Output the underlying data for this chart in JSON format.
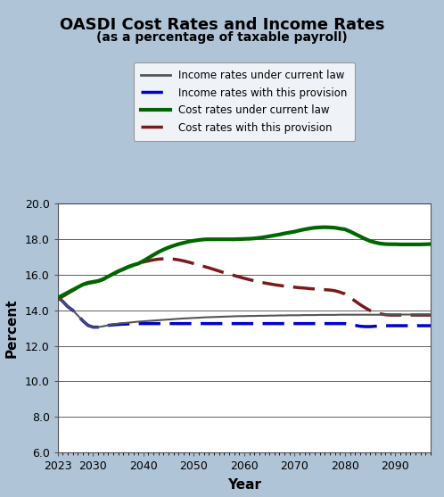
{
  "title": "OASDI Cost Rates and Income Rates",
  "subtitle": "(as a percentage of taxable payroll)",
  "xlabel": "Year",
  "ylabel": "Percent",
  "bg_color": "#b0c4d8",
  "plot_bg_color": "#ffffff",
  "ylim": [
    6.0,
    20.0
  ],
  "yticks": [
    6.0,
    8.0,
    10.0,
    12.0,
    14.0,
    16.0,
    18.0,
    20.0
  ],
  "xticks": [
    2023,
    2030,
    2040,
    2050,
    2060,
    2070,
    2080,
    2090
  ],
  "years": [
    2023,
    2024,
    2025,
    2026,
    2027,
    2028,
    2029,
    2030,
    2031,
    2032,
    2033,
    2034,
    2035,
    2036,
    2037,
    2038,
    2039,
    2040,
    2041,
    2042,
    2043,
    2044,
    2045,
    2046,
    2047,
    2048,
    2049,
    2050,
    2051,
    2052,
    2053,
    2054,
    2055,
    2056,
    2057,
    2058,
    2059,
    2060,
    2061,
    2062,
    2063,
    2064,
    2065,
    2066,
    2067,
    2068,
    2069,
    2070,
    2071,
    2072,
    2073,
    2074,
    2075,
    2076,
    2077,
    2078,
    2079,
    2080,
    2081,
    2082,
    2083,
    2084,
    2085,
    2086,
    2087,
    2088,
    2089,
    2090,
    2091,
    2092,
    2093,
    2094,
    2095,
    2096,
    2097
  ],
  "income_current_law": [
    14.75,
    14.5,
    14.2,
    14.0,
    13.7,
    13.4,
    13.15,
    13.05,
    13.05,
    13.1,
    13.15,
    13.2,
    13.25,
    13.28,
    13.3,
    13.33,
    13.36,
    13.38,
    13.4,
    13.42,
    13.44,
    13.46,
    13.48,
    13.5,
    13.52,
    13.54,
    13.55,
    13.57,
    13.58,
    13.6,
    13.61,
    13.62,
    13.63,
    13.64,
    13.65,
    13.66,
    13.67,
    13.67,
    13.68,
    13.68,
    13.69,
    13.69,
    13.7,
    13.7,
    13.71,
    13.71,
    13.72,
    13.72,
    13.72,
    13.73,
    13.73,
    13.73,
    13.74,
    13.74,
    13.74,
    13.74,
    13.75,
    13.75,
    13.75,
    13.75,
    13.75,
    13.75,
    13.75,
    13.75,
    13.75,
    13.76,
    13.76,
    13.76,
    13.76,
    13.76,
    13.76,
    13.76,
    13.76,
    13.76,
    13.76
  ],
  "income_provision": [
    14.75,
    14.5,
    14.2,
    14.0,
    13.7,
    13.4,
    13.15,
    13.05,
    13.05,
    13.1,
    13.15,
    13.18,
    13.2,
    13.22,
    13.23,
    13.24,
    13.25,
    13.25,
    13.25,
    13.25,
    13.25,
    13.25,
    13.25,
    13.25,
    13.25,
    13.25,
    13.25,
    13.25,
    13.25,
    13.25,
    13.25,
    13.25,
    13.25,
    13.25,
    13.25,
    13.25,
    13.25,
    13.25,
    13.25,
    13.25,
    13.25,
    13.25,
    13.25,
    13.25,
    13.25,
    13.25,
    13.25,
    13.25,
    13.25,
    13.25,
    13.25,
    13.25,
    13.25,
    13.25,
    13.25,
    13.25,
    13.25,
    13.25,
    13.2,
    13.15,
    13.1,
    13.08,
    13.08,
    13.1,
    13.12,
    13.13,
    13.13,
    13.13,
    13.13,
    13.13,
    13.13,
    13.13,
    13.13,
    13.13,
    13.13
  ],
  "cost_current_law": [
    14.7,
    14.85,
    15.0,
    15.15,
    15.3,
    15.45,
    15.55,
    15.6,
    15.65,
    15.75,
    15.9,
    16.05,
    16.2,
    16.32,
    16.45,
    16.55,
    16.63,
    16.78,
    16.95,
    17.12,
    17.28,
    17.42,
    17.54,
    17.64,
    17.73,
    17.8,
    17.87,
    17.92,
    17.96,
    17.99,
    18.0,
    18.0,
    18.0,
    18.0,
    18.0,
    18.0,
    18.01,
    18.02,
    18.03,
    18.05,
    18.08,
    18.12,
    18.17,
    18.22,
    18.27,
    18.33,
    18.38,
    18.43,
    18.5,
    18.56,
    18.61,
    18.65,
    18.67,
    18.68,
    18.67,
    18.65,
    18.6,
    18.56,
    18.44,
    18.3,
    18.16,
    18.02,
    17.9,
    17.82,
    17.76,
    17.73,
    17.72,
    17.72,
    17.71,
    17.71,
    17.71,
    17.71,
    17.71,
    17.72,
    17.73
  ],
  "cost_provision": [
    14.6,
    14.78,
    14.95,
    15.12,
    15.28,
    15.42,
    15.52,
    15.57,
    15.63,
    15.73,
    15.88,
    16.03,
    16.18,
    16.3,
    16.43,
    16.53,
    16.6,
    16.72,
    16.78,
    16.84,
    16.88,
    16.9,
    16.9,
    16.88,
    16.84,
    16.78,
    16.71,
    16.63,
    16.55,
    16.47,
    16.39,
    16.3,
    16.21,
    16.12,
    16.04,
    15.96,
    15.88,
    15.8,
    15.73,
    15.66,
    15.6,
    15.54,
    15.49,
    15.44,
    15.4,
    15.36,
    15.33,
    15.3,
    15.27,
    15.25,
    15.22,
    15.2,
    15.18,
    15.16,
    15.14,
    15.1,
    15.02,
    14.92,
    14.72,
    14.52,
    14.32,
    14.14,
    13.98,
    13.87,
    13.8,
    13.75,
    13.73,
    13.73,
    13.73,
    13.73,
    13.73,
    13.73,
    13.73,
    13.73,
    13.73
  ],
  "income_current_law_color": "#555555",
  "income_provision_color": "#0000cc",
  "cost_current_law_color": "#006600",
  "cost_provision_color": "#7a1a1a",
  "legend_labels": [
    "Income rates under current law",
    "Income rates with this provision",
    "Cost rates under current law",
    "Cost rates with this provision"
  ]
}
